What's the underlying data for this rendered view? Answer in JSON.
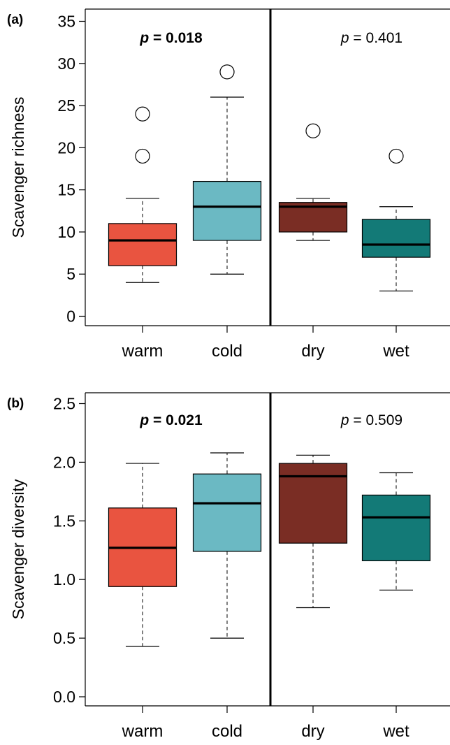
{
  "chart_data": [
    {
      "type": "box",
      "panel_label": "(a)",
      "ylabel": "Scavenger richness",
      "ylim": [
        -1,
        36.5
      ],
      "y_ticks": [
        0,
        5,
        10,
        15,
        20,
        25,
        30,
        35
      ],
      "categories": [
        "warm",
        "cold",
        "dry",
        "wet"
      ],
      "colors": [
        "#e95440",
        "#6bb9c3",
        "#7a2d24",
        "#137a77"
      ],
      "boxes": [
        {
          "category": "warm",
          "whisker_low": 4,
          "q1": 6,
          "median": 9,
          "q3": 11,
          "whisker_high": 14,
          "outliers": [
            19,
            24
          ]
        },
        {
          "category": "cold",
          "whisker_low": 5,
          "q1": 9,
          "median": 13,
          "q3": 16,
          "whisker_high": 26,
          "outliers": [
            29
          ]
        },
        {
          "category": "dry",
          "whisker_low": 9,
          "q1": 10,
          "median": 13,
          "q3": 13.5,
          "whisker_high": 14,
          "outliers": [
            22
          ]
        },
        {
          "category": "wet",
          "whisker_low": 3,
          "q1": 7,
          "median": 8.5,
          "q3": 11.5,
          "whisker_high": 13,
          "outliers": [
            19
          ]
        }
      ],
      "annotations": [
        {
          "text": "p = 0.018",
          "italic_prefix": "p",
          "rest": " = 0.018",
          "bold": true,
          "group": "left"
        },
        {
          "text": "p = 0.401",
          "italic_prefix": "p",
          "rest": " = 0.401",
          "bold": false,
          "group": "right"
        }
      ],
      "divider": "between cold and dry",
      "grid": false
    },
    {
      "type": "box",
      "panel_label": "(b)",
      "ylabel": "Scavenger diversity",
      "ylim": [
        -0.08,
        2.55
      ],
      "y_ticks": [
        "0.0",
        "0.5",
        "1.0",
        "1.5",
        "2.0",
        "2.5"
      ],
      "categories": [
        "warm",
        "cold",
        "dry",
        "wet"
      ],
      "colors": [
        "#e95440",
        "#6bb9c3",
        "#7a2d24",
        "#137a77"
      ],
      "boxes": [
        {
          "category": "warm",
          "whisker_low": 0.43,
          "q1": 0.94,
          "median": 1.27,
          "q3": 1.61,
          "whisker_high": 1.99,
          "outliers": []
        },
        {
          "category": "cold",
          "whisker_low": 0.5,
          "q1": 1.24,
          "median": 1.65,
          "q3": 1.9,
          "whisker_high": 2.08,
          "outliers": []
        },
        {
          "category": "dry",
          "whisker_low": 0.76,
          "q1": 1.31,
          "median": 1.88,
          "q3": 1.99,
          "whisker_high": 2.06,
          "outliers": []
        },
        {
          "category": "wet",
          "whisker_low": 0.91,
          "q1": 1.16,
          "median": 1.53,
          "q3": 1.72,
          "whisker_high": 1.91,
          "outliers": []
        }
      ],
      "annotations": [
        {
          "text": "p = 0.021",
          "italic_prefix": "p",
          "rest": " = 0.021",
          "bold": true,
          "group": "left"
        },
        {
          "text": "p = 0.509",
          "italic_prefix": "p",
          "rest": " = 0.509",
          "bold": false,
          "group": "right"
        }
      ],
      "divider": "between cold and dry",
      "grid": false
    }
  ]
}
